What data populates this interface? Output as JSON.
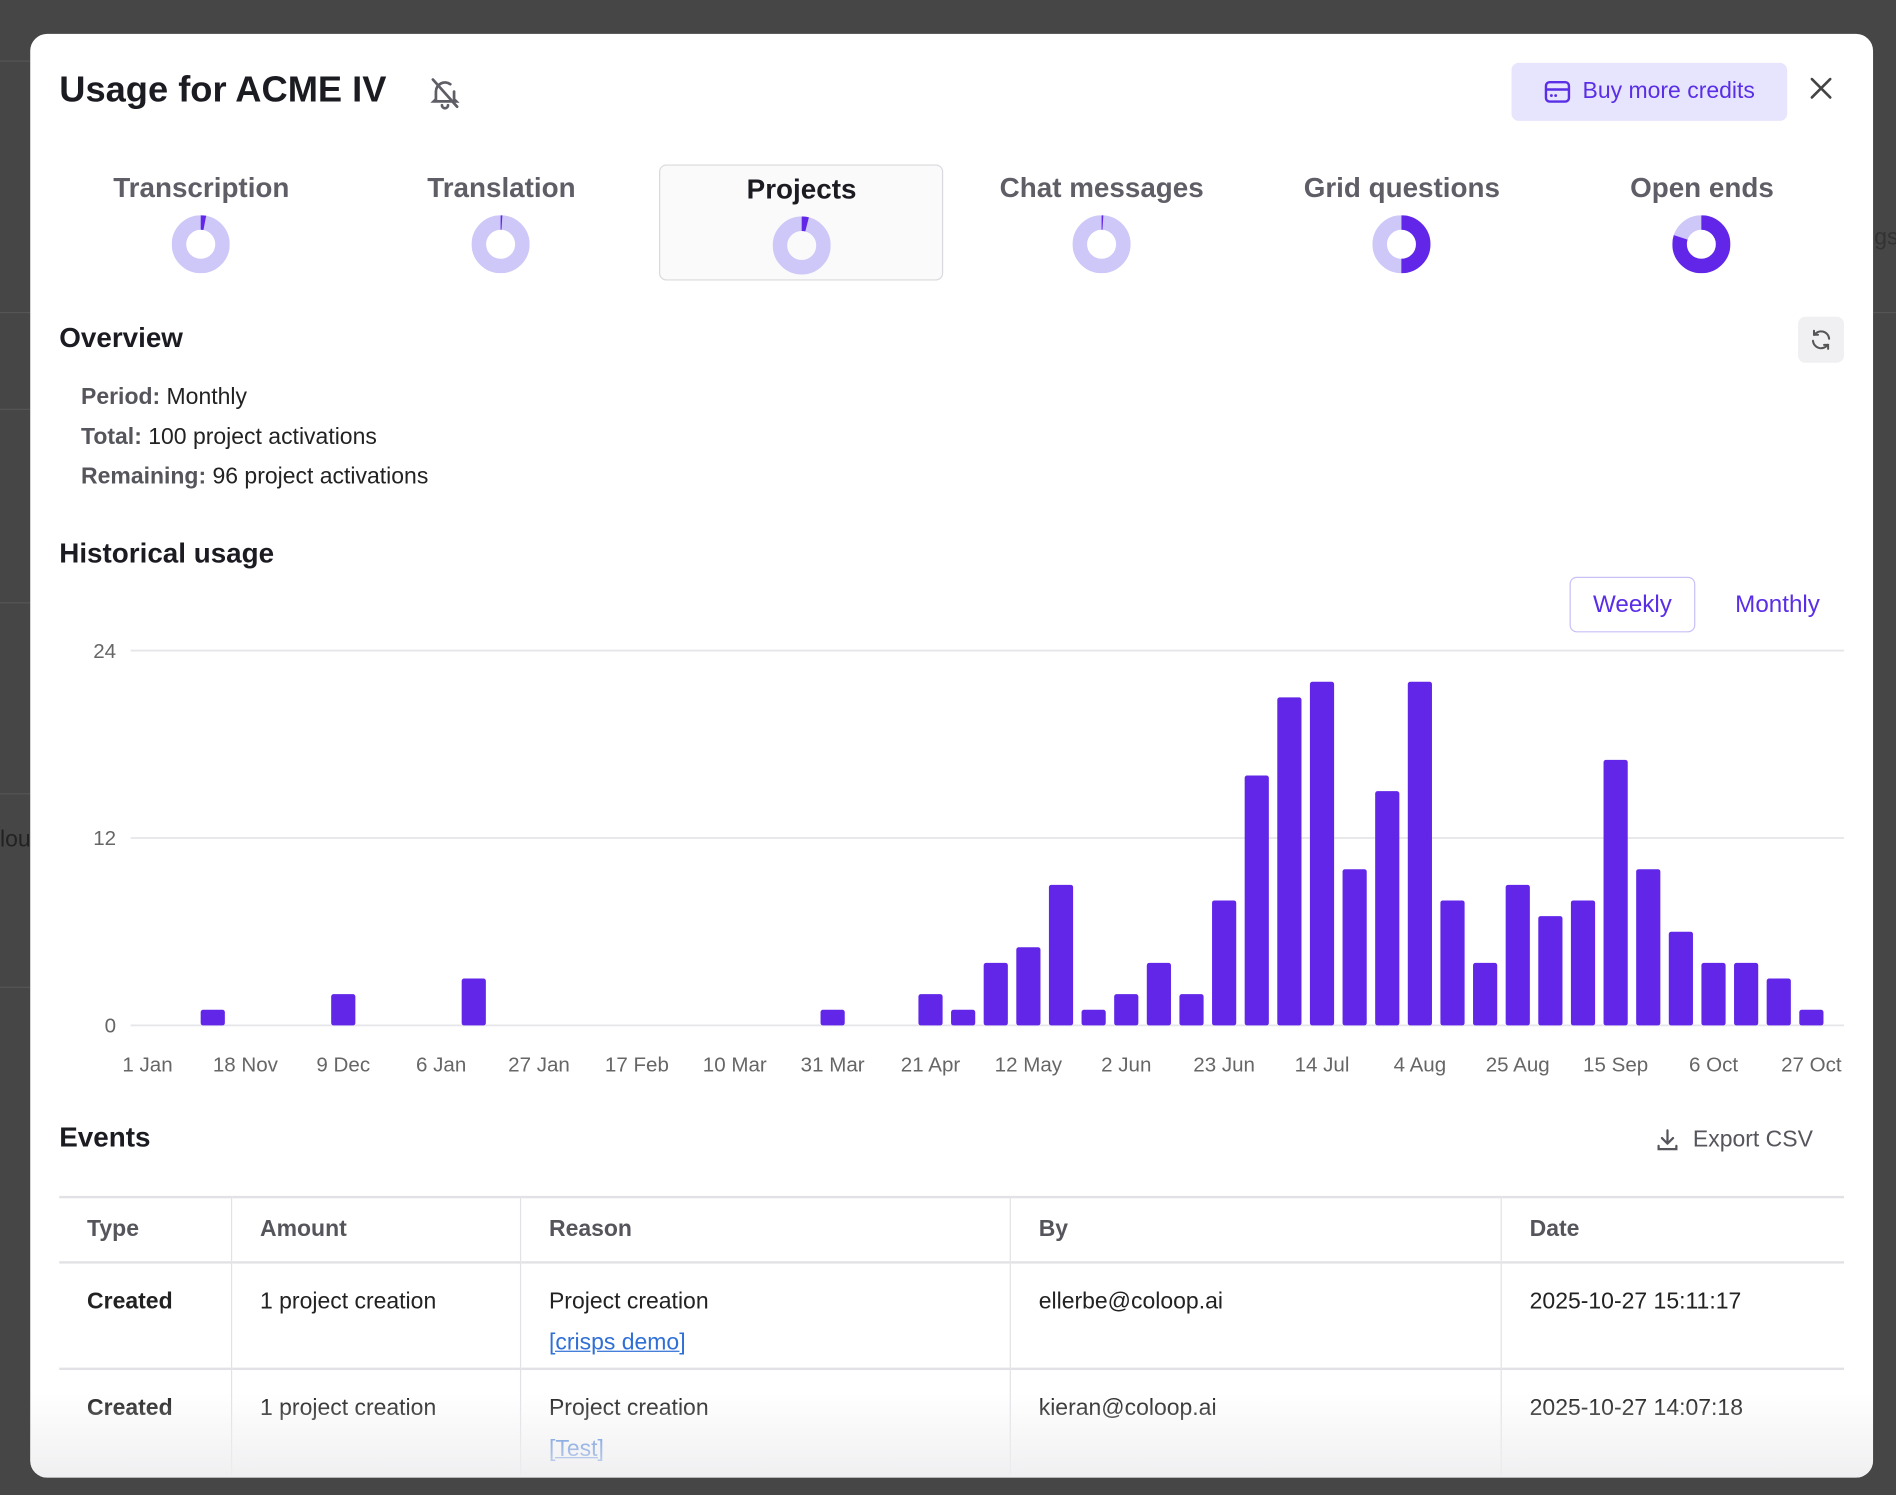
{
  "background_fragments": [
    "lou",
    "gs"
  ],
  "modal": {
    "title": "Usage for ACME IV",
    "buy_credits_label": "Buy more credits",
    "accent_color": "#6226e8",
    "accent_light": "#cdc8f8"
  },
  "tabs": [
    {
      "label": "Transcription",
      "used_fraction": 0.03,
      "selected": false
    },
    {
      "label": "Translation",
      "used_fraction": 0.01,
      "selected": false
    },
    {
      "label": "Projects",
      "used_fraction": 0.04,
      "selected": true
    },
    {
      "label": "Chat messages",
      "used_fraction": 0.01,
      "selected": false
    },
    {
      "label": "Grid questions",
      "used_fraction": 0.5,
      "selected": false
    },
    {
      "label": "Open ends",
      "used_fraction": 0.8,
      "selected": false
    }
  ],
  "overview": {
    "heading": "Overview",
    "period_label": "Period:",
    "period_value": "Monthly",
    "total_label": "Total:",
    "total_value": "100 project activations",
    "remaining_label": "Remaining:",
    "remaining_value": "96 project activations"
  },
  "historical": {
    "heading": "Historical usage",
    "weekly_label": "Weekly",
    "monthly_label": "Monthly",
    "selected": "Weekly"
  },
  "chart_data": {
    "type": "bar",
    "ylim": [
      0,
      24
    ],
    "yticks": [
      "0",
      "12",
      "24"
    ],
    "grid": true,
    "color": "#6226e8",
    "xtick_labels": [
      "1 Jan",
      "18 Nov",
      "9 Dec",
      "6 Jan",
      "27 Jan",
      "17 Feb",
      "10 Mar",
      "31 Mar",
      "21 Apr",
      "12 May",
      "2 Jun",
      "23 Jun",
      "14 Jul",
      "4 Aug",
      "25 Aug",
      "15 Sep",
      "6 Oct",
      "27 Oct"
    ],
    "values": [
      0,
      0,
      1,
      0,
      0,
      0,
      2,
      0,
      0,
      0,
      3,
      0,
      0,
      0,
      0,
      0,
      0,
      0,
      0,
      0,
      0,
      1,
      0,
      0,
      2,
      1,
      4,
      5,
      9,
      1,
      2,
      4,
      2,
      8,
      16,
      21,
      22,
      10,
      15,
      22,
      8,
      4,
      9,
      7,
      8,
      17,
      10,
      6,
      4,
      4,
      3,
      1
    ]
  },
  "events": {
    "heading": "Events",
    "export_label": "Export CSV",
    "columns": [
      "Type",
      "Amount",
      "Reason",
      "By",
      "Date"
    ],
    "rows": [
      {
        "type": "Created",
        "amount": "1 project creation",
        "reason": "Project creation",
        "link": "[crisps demo]",
        "by": "ellerbe@coloop.ai",
        "date": "2025-10-27 15:11:17"
      },
      {
        "type": "Created",
        "amount": "1 project creation",
        "reason": "Project creation",
        "link": "[Test]",
        "by": "kieran@coloop.ai",
        "date": "2025-10-27 14:07:18"
      }
    ]
  }
}
